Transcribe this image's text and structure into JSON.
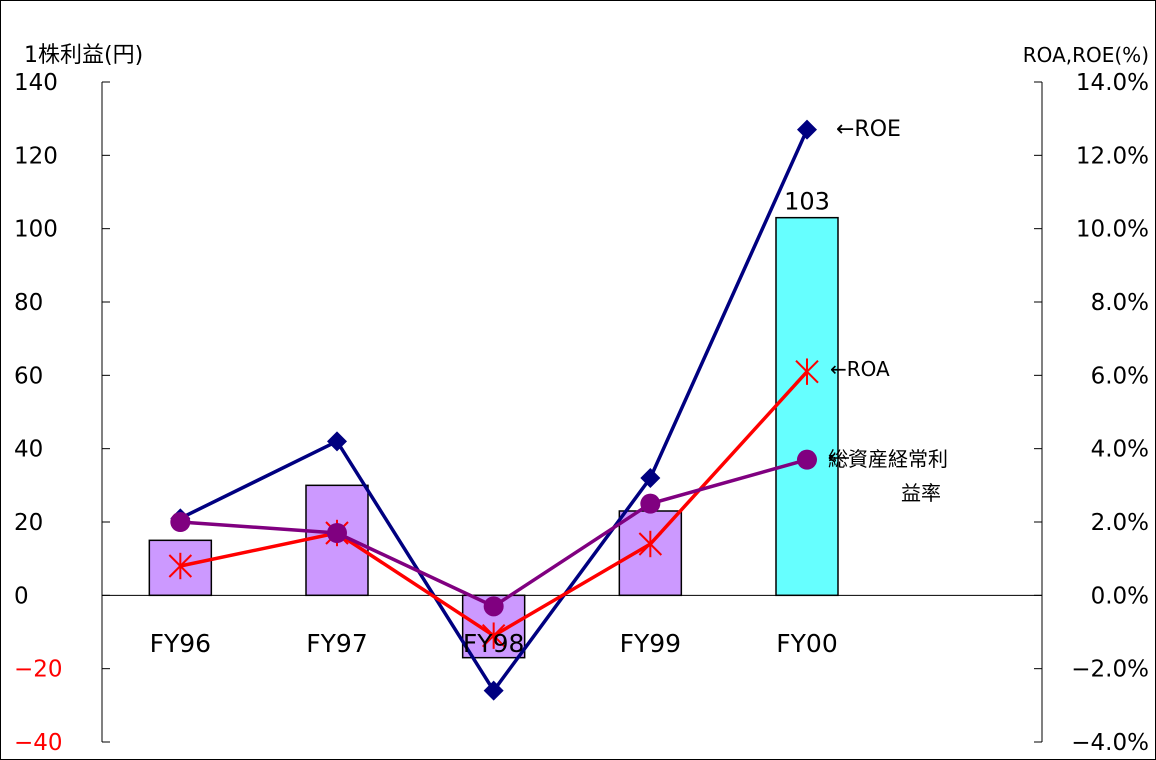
{
  "chart_data": {
    "type": "bar",
    "title": "",
    "categories": [
      "FY96",
      "FY97",
      "FY98",
      "FY99",
      "FY00"
    ],
    "left_axis": {
      "label": "1株利益(円)",
      "ylim": [
        -40,
        140
      ],
      "ticks": [
        -40,
        -20,
        0,
        20,
        40,
        60,
        80,
        100,
        120,
        140
      ],
      "negative_tick_color": "#ff0000"
    },
    "right_axis": {
      "label": "ROA,ROE(%)",
      "ylim": [
        -4.0,
        14.0
      ],
      "ticks": [
        -4.0,
        -2.0,
        0.0,
        2.0,
        4.0,
        6.0,
        8.0,
        10.0,
        12.0,
        14.0
      ],
      "tick_labels": [
        "−4.0%",
        "−2.0%",
        "0.0%",
        "2.0%",
        "4.0%",
        "6.0%",
        "8.0%",
        "10.0%",
        "12.0%",
        "14.0%"
      ]
    },
    "bars": {
      "axis": "left",
      "values": [
        15,
        30,
        -17,
        23,
        103
      ],
      "colors": [
        "#cc99ff",
        "#cc99ff",
        "#cc99ff",
        "#cc99ff",
        "#66ffff"
      ],
      "data_labels": [
        "",
        "",
        "",
        "",
        "103"
      ]
    },
    "series": [
      {
        "name": "ROE",
        "label_text": "←ROE",
        "axis": "right",
        "values": [
          2.1,
          4.2,
          -2.6,
          3.2,
          12.7
        ],
        "color": "#000080",
        "marker": "diamond"
      },
      {
        "name": "ROA",
        "label_text": "←ROA",
        "axis": "right",
        "values": [
          0.8,
          1.7,
          -1.1,
          1.4,
          6.1
        ],
        "color": "#ff0000",
        "marker": "asterisk"
      },
      {
        "name": "総資産経常利益率",
        "label_lines": [
          "総資産経常利",
          "益率"
        ],
        "axis": "right",
        "values": [
          2.0,
          1.7,
          -0.3,
          2.5,
          3.7
        ],
        "color": "#800080",
        "marker": "circle"
      }
    ],
    "grid": false
  }
}
